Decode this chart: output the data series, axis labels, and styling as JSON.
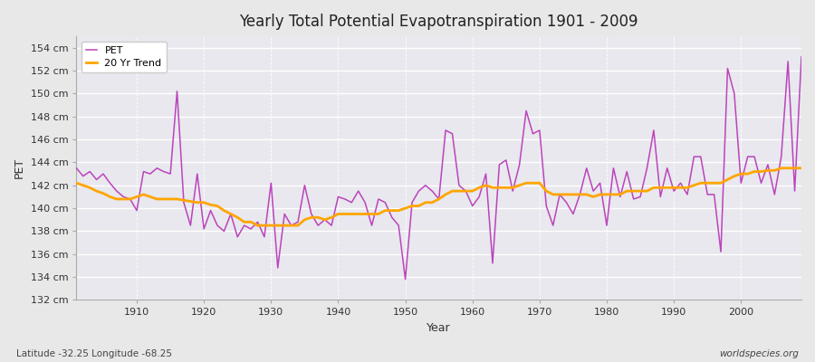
{
  "title": "Yearly Total Potential Evapotranspiration 1901 - 2009",
  "xlabel": "Year",
  "ylabel": "PET",
  "lat_lon_label": "Latitude -32.25 Longitude -68.25",
  "watermark": "worldspecies.org",
  "pet_color": "#BB44BB",
  "trend_color": "#FFA500",
  "fig_bg_color": "#E8E8E8",
  "plot_bg_color": "#E8E8EE",
  "ylim_min": 132,
  "ylim_max": 155,
  "xlim_min": 1901,
  "xlim_max": 2009,
  "years": [
    1901,
    1902,
    1903,
    1904,
    1905,
    1906,
    1907,
    1908,
    1909,
    1910,
    1911,
    1912,
    1913,
    1914,
    1915,
    1916,
    1917,
    1918,
    1919,
    1920,
    1921,
    1922,
    1923,
    1924,
    1925,
    1926,
    1927,
    1928,
    1929,
    1930,
    1931,
    1932,
    1933,
    1934,
    1935,
    1936,
    1937,
    1938,
    1939,
    1940,
    1941,
    1942,
    1943,
    1944,
    1945,
    1946,
    1947,
    1948,
    1949,
    1950,
    1951,
    1952,
    1953,
    1954,
    1955,
    1956,
    1957,
    1958,
    1959,
    1960,
    1961,
    1962,
    1963,
    1964,
    1965,
    1966,
    1967,
    1968,
    1969,
    1970,
    1971,
    1972,
    1973,
    1974,
    1975,
    1976,
    1977,
    1978,
    1979,
    1980,
    1981,
    1982,
    1983,
    1984,
    1985,
    1986,
    1987,
    1988,
    1989,
    1990,
    1991,
    1992,
    1993,
    1994,
    1995,
    1996,
    1997,
    1998,
    1999,
    2000,
    2001,
    2002,
    2003,
    2004,
    2005,
    2006,
    2007,
    2008,
    2009
  ],
  "pet_values": [
    143.5,
    142.8,
    143.2,
    142.5,
    143.0,
    142.2,
    141.5,
    141.0,
    140.8,
    139.8,
    143.2,
    143.0,
    143.5,
    143.2,
    143.0,
    150.2,
    140.5,
    138.5,
    143.0,
    138.2,
    139.8,
    138.5,
    138.0,
    139.5,
    137.5,
    138.5,
    138.2,
    138.8,
    137.5,
    142.2,
    134.8,
    139.5,
    138.5,
    138.8,
    142.0,
    139.5,
    138.5,
    139.0,
    138.5,
    141.0,
    140.8,
    140.5,
    141.5,
    140.5,
    138.5,
    140.8,
    140.5,
    139.2,
    138.5,
    133.8,
    140.5,
    141.5,
    142.0,
    141.5,
    140.8,
    146.8,
    146.5,
    142.0,
    141.5,
    140.2,
    141.0,
    143.0,
    135.2,
    143.8,
    144.2,
    141.5,
    143.8,
    148.5,
    146.5,
    146.8,
    140.2,
    138.5,
    141.2,
    140.5,
    139.5,
    141.2,
    143.5,
    141.5,
    142.2,
    138.5,
    143.5,
    141.0,
    143.2,
    140.8,
    141.0,
    143.5,
    146.8,
    141.0,
    143.5,
    141.5,
    142.2,
    141.2,
    144.5,
    144.5,
    141.2,
    141.2,
    136.2,
    152.2,
    150.0,
    142.2,
    144.5,
    144.5,
    142.2,
    143.8,
    141.2,
    144.5,
    152.8,
    141.5,
    153.2
  ],
  "trend_values": [
    142.2,
    142.0,
    141.8,
    141.5,
    141.3,
    141.0,
    140.8,
    140.8,
    140.8,
    141.0,
    141.2,
    141.0,
    140.8,
    140.8,
    140.8,
    140.8,
    140.7,
    140.6,
    140.5,
    140.5,
    140.3,
    140.2,
    139.8,
    139.5,
    139.2,
    138.8,
    138.8,
    138.5,
    138.5,
    138.5,
    138.5,
    138.5,
    138.5,
    138.5,
    139.0,
    139.2,
    139.2,
    139.0,
    139.2,
    139.5,
    139.5,
    139.5,
    139.5,
    139.5,
    139.5,
    139.5,
    139.8,
    139.8,
    139.8,
    140.0,
    140.2,
    140.2,
    140.5,
    140.5,
    140.8,
    141.2,
    141.5,
    141.5,
    141.5,
    141.5,
    141.8,
    142.0,
    141.8,
    141.8,
    141.8,
    141.8,
    142.0,
    142.2,
    142.2,
    142.2,
    141.5,
    141.2,
    141.2,
    141.2,
    141.2,
    141.2,
    141.2,
    141.0,
    141.2,
    141.2,
    141.2,
    141.2,
    141.5,
    141.5,
    141.5,
    141.5,
    141.8,
    141.8,
    141.8,
    141.8,
    141.8,
    141.8,
    142.0,
    142.2,
    142.2,
    142.2,
    142.2,
    142.5,
    142.8,
    143.0,
    143.0,
    143.2,
    143.2,
    143.3,
    143.3,
    143.5,
    143.5,
    143.5,
    143.5
  ]
}
